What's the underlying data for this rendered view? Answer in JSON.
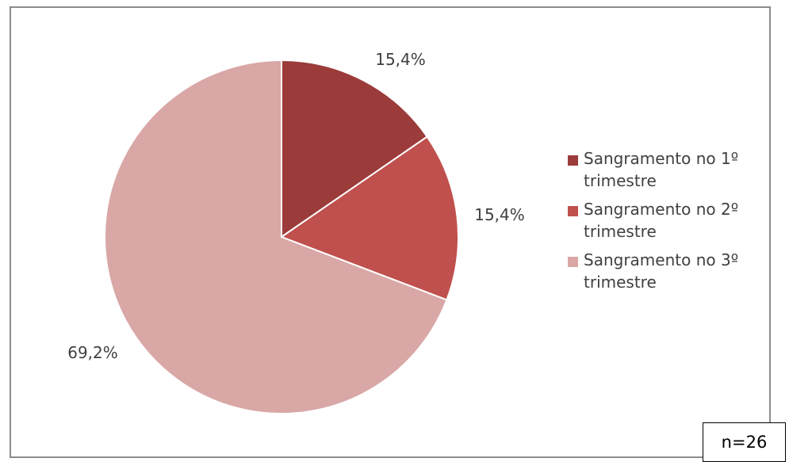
{
  "chart_data": {
    "type": "pie",
    "slices": [
      {
        "label": "Sangramento no 1º trimestre",
        "value": 15.4,
        "display": "15,4%",
        "color": "#9b3b3a"
      },
      {
        "label": "Sangramento no 2º trimestre",
        "value": 15.4,
        "display": "15,4%",
        "color": "#c0504d"
      },
      {
        "label": "Sangramento no 3º trimestre",
        "value": 69.2,
        "display": "69,2%",
        "color": "#d8a7a6"
      }
    ],
    "legend_position": "right",
    "start_angle": "12 o'clock, clockwise"
  },
  "annotation": {
    "n_text": "n=26"
  }
}
